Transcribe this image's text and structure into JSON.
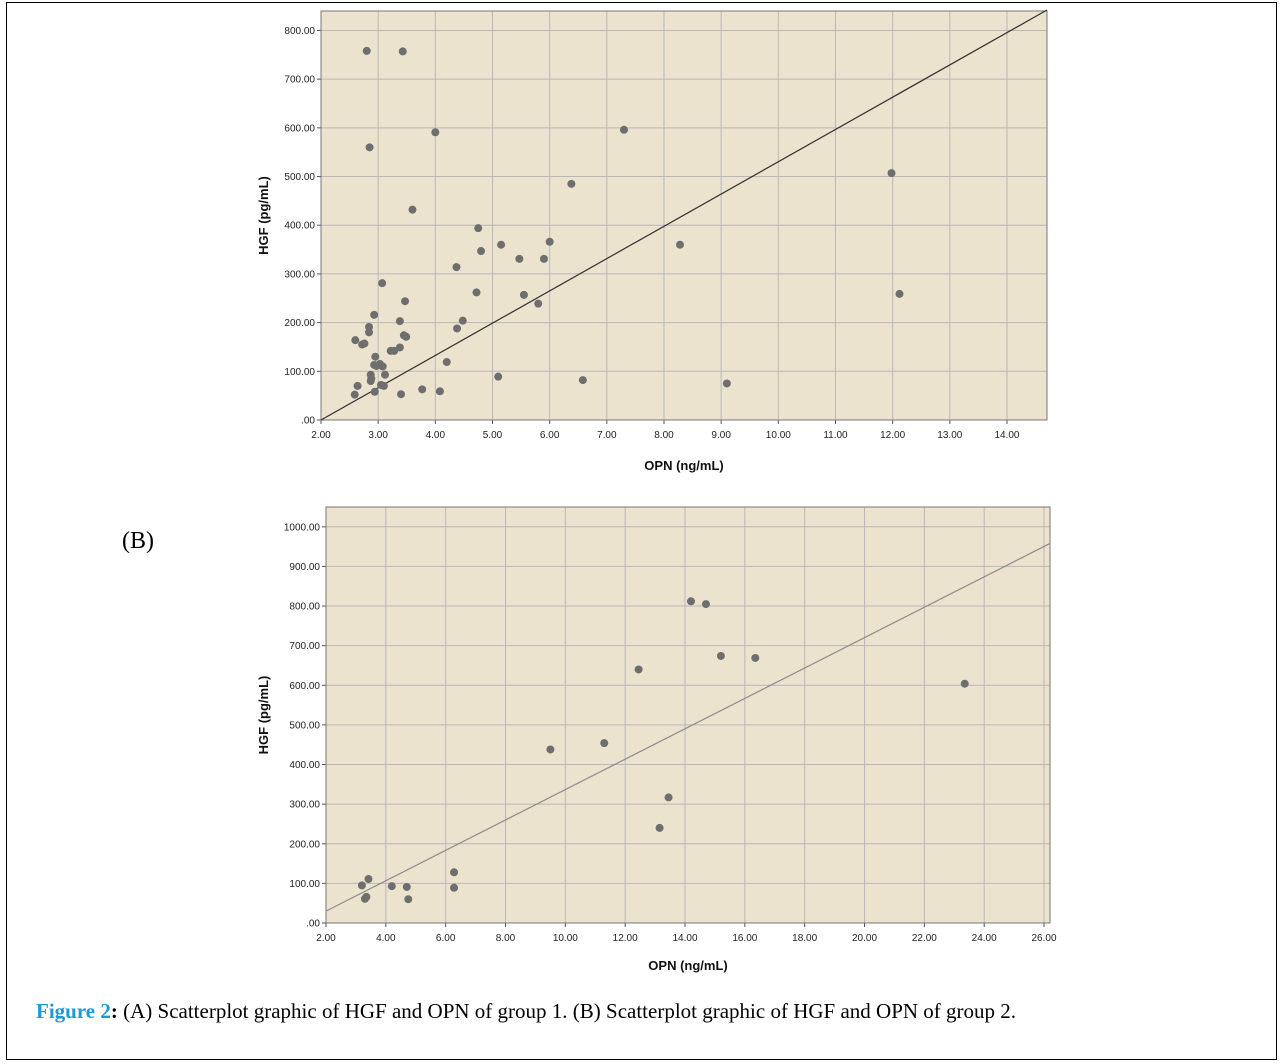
{
  "colors": {
    "plot_background": "#ece3cf",
    "grid": "#b8b8b8",
    "point": "#6e6e6e",
    "fit_line_a": "#2f2f2f",
    "fit_line_b": "#8c8c8c",
    "caption_label": "#1a9ad6"
  },
  "panel_b_label": "(B)",
  "caption": {
    "label": "Figure 2",
    "colon": ":",
    "text": " (A) Scatterplot graphic of HGF and OPN of group 1. (B) Scatterplot graphic of HGF and OPN of group 2."
  },
  "chart_data": [
    {
      "type": "scatter",
      "panel": "A",
      "xlabel": "OPN (ng/mL)",
      "ylabel": "HGF (pg/mL)",
      "xlim": [
        2.0,
        14.7
      ],
      "ylim": [
        0,
        840
      ],
      "xticks": [
        2,
        3,
        4,
        5,
        6,
        7,
        8,
        9,
        10,
        11,
        12,
        13,
        14
      ],
      "xtick_labels": [
        "2.00",
        "3.00",
        "4.00",
        "5.00",
        "6.00",
        "7.00",
        "8.00",
        "9.00",
        "10.00",
        "11.00",
        "12.00",
        "13.00",
        "14.00"
      ],
      "yticks": [
        0,
        100,
        200,
        300,
        400,
        500,
        600,
        700,
        800
      ],
      "ytick_labels": [
        ".00",
        "100.00",
        "200.00",
        "300.00",
        "400.00",
        "500.00",
        "600.00",
        "700.00",
        "800.00"
      ],
      "grid": true,
      "fit_line": {
        "x": [
          2.0,
          14.7
        ],
        "y": [
          0,
          842
        ]
      },
      "points": [
        {
          "x": 2.8,
          "y": 758
        },
        {
          "x": 3.43,
          "y": 757
        },
        {
          "x": 2.85,
          "y": 560
        },
        {
          "x": 4.0,
          "y": 591
        },
        {
          "x": 7.3,
          "y": 596
        },
        {
          "x": 6.38,
          "y": 485
        },
        {
          "x": 11.98,
          "y": 507
        },
        {
          "x": 3.6,
          "y": 432
        },
        {
          "x": 4.75,
          "y": 394
        },
        {
          "x": 6.0,
          "y": 366
        },
        {
          "x": 5.15,
          "y": 360
        },
        {
          "x": 8.28,
          "y": 360
        },
        {
          "x": 4.8,
          "y": 347
        },
        {
          "x": 5.47,
          "y": 331
        },
        {
          "x": 5.9,
          "y": 331
        },
        {
          "x": 4.37,
          "y": 314
        },
        {
          "x": 3.07,
          "y": 281
        },
        {
          "x": 4.72,
          "y": 262
        },
        {
          "x": 5.55,
          "y": 257
        },
        {
          "x": 12.12,
          "y": 259
        },
        {
          "x": 5.8,
          "y": 239
        },
        {
          "x": 3.47,
          "y": 244
        },
        {
          "x": 2.93,
          "y": 216
        },
        {
          "x": 4.48,
          "y": 204
        },
        {
          "x": 3.38,
          "y": 203
        },
        {
          "x": 2.84,
          "y": 191
        },
        {
          "x": 4.38,
          "y": 188
        },
        {
          "x": 2.84,
          "y": 180
        },
        {
          "x": 3.45,
          "y": 174
        },
        {
          "x": 3.49,
          "y": 171
        },
        {
          "x": 2.6,
          "y": 164
        },
        {
          "x": 2.72,
          "y": 155
        },
        {
          "x": 2.76,
          "y": 157
        },
        {
          "x": 3.38,
          "y": 149
        },
        {
          "x": 3.22,
          "y": 142
        },
        {
          "x": 3.28,
          "y": 142
        },
        {
          "x": 2.95,
          "y": 130
        },
        {
          "x": 4.2,
          "y": 119
        },
        {
          "x": 3.03,
          "y": 115
        },
        {
          "x": 2.93,
          "y": 113
        },
        {
          "x": 2.97,
          "y": 111
        },
        {
          "x": 3.08,
          "y": 110
        },
        {
          "x": 3.12,
          "y": 93
        },
        {
          "x": 2.87,
          "y": 93
        },
        {
          "x": 2.88,
          "y": 85
        },
        {
          "x": 2.87,
          "y": 80
        },
        {
          "x": 5.1,
          "y": 89
        },
        {
          "x": 6.58,
          "y": 82
        },
        {
          "x": 9.1,
          "y": 75
        },
        {
          "x": 3.05,
          "y": 72
        },
        {
          "x": 3.1,
          "y": 70
        },
        {
          "x": 2.64,
          "y": 70
        },
        {
          "x": 3.77,
          "y": 63
        },
        {
          "x": 4.08,
          "y": 59
        },
        {
          "x": 2.94,
          "y": 58
        },
        {
          "x": 3.4,
          "y": 53
        },
        {
          "x": 2.59,
          "y": 52
        }
      ]
    },
    {
      "type": "scatter",
      "panel": "B",
      "xlabel": "OPN (ng/mL)",
      "ylabel": "HGF (pg/mL)",
      "xlim": [
        2.0,
        26.2
      ],
      "ylim": [
        0,
        1050
      ],
      "xticks": [
        2,
        4,
        6,
        8,
        10,
        12,
        14,
        16,
        18,
        20,
        22,
        24,
        26
      ],
      "xtick_labels": [
        "2.00",
        "4.00",
        "6.00",
        "8.00",
        "10.00",
        "12.00",
        "14.00",
        "16.00",
        "18.00",
        "20.00",
        "22.00",
        "24.00",
        "26.00"
      ],
      "yticks": [
        0,
        100,
        200,
        300,
        400,
        500,
        600,
        700,
        800,
        900,
        1000
      ],
      "ytick_labels": [
        ".00",
        "100.00",
        "200.00",
        "300.00",
        "400.00",
        "500.00",
        "600.00",
        "700.00",
        "800.00",
        "900.00",
        "1000.00"
      ],
      "grid": true,
      "fit_line": {
        "x": [
          2.0,
          26.2
        ],
        "y": [
          30,
          958
        ]
      },
      "points": [
        {
          "x": 14.2,
          "y": 812
        },
        {
          "x": 14.7,
          "y": 805
        },
        {
          "x": 15.2,
          "y": 674
        },
        {
          "x": 16.35,
          "y": 669
        },
        {
          "x": 12.45,
          "y": 640
        },
        {
          "x": 23.35,
          "y": 604
        },
        {
          "x": 11.3,
          "y": 454
        },
        {
          "x": 9.5,
          "y": 438
        },
        {
          "x": 13.45,
          "y": 317
        },
        {
          "x": 13.15,
          "y": 240
        },
        {
          "x": 6.28,
          "y": 128
        },
        {
          "x": 3.42,
          "y": 111
        },
        {
          "x": 3.2,
          "y": 95
        },
        {
          "x": 4.2,
          "y": 93
        },
        {
          "x": 4.7,
          "y": 91
        },
        {
          "x": 6.28,
          "y": 89
        },
        {
          "x": 3.35,
          "y": 66
        },
        {
          "x": 3.3,
          "y": 61
        },
        {
          "x": 4.75,
          "y": 60
        }
      ]
    }
  ]
}
